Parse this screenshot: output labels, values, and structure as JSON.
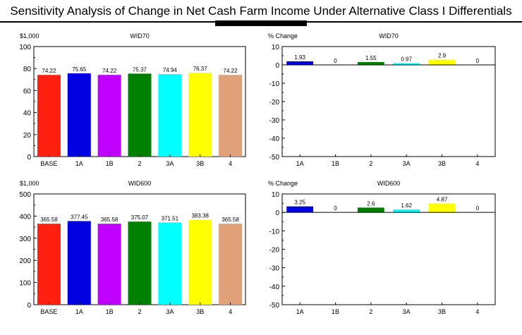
{
  "title": "Sensitivity Analysis of Change in Net Cash Farm Income Under Alternative Class I Differentials",
  "chart_data": [
    {
      "type": "bar",
      "title": "WID70",
      "ylabel": "$1,000",
      "ylim": [
        0,
        100
      ],
      "yticks": [
        0,
        20,
        40,
        60,
        80,
        100
      ],
      "categories": [
        "BASE",
        "1A",
        "1B",
        "2",
        "3A",
        "3B",
        "4"
      ],
      "values": [
        74.22,
        75.65,
        74.22,
        75.37,
        74.94,
        76.37,
        74.22
      ],
      "labels": [
        "74.22",
        "75.65",
        "74.22",
        "75.37",
        "74.94",
        "76.37",
        "74.22"
      ],
      "colors": [
        "#ff2010",
        "#0000e0",
        "#c000ff",
        "#008000",
        "#00ffff",
        "#ffff00",
        "#e0a078"
      ]
    },
    {
      "type": "bar",
      "title": "WID70",
      "ylabel": "% Change",
      "ylim": [
        -50,
        10
      ],
      "yticks": [
        -50,
        -40,
        -30,
        -20,
        -10,
        0,
        10
      ],
      "categories": [
        "1A",
        "1B",
        "2",
        "3A",
        "3B",
        "4"
      ],
      "values": [
        1.93,
        0,
        1.55,
        0.97,
        2.9,
        0
      ],
      "labels": [
        "1.93",
        "0",
        "1.55",
        "0.97",
        "2.9",
        "0"
      ],
      "colors": [
        "#0000e0",
        "#c000ff",
        "#008000",
        "#00ffff",
        "#ffff00",
        "#e0a078"
      ]
    },
    {
      "type": "bar",
      "title": "WID600",
      "ylabel": "$1,000",
      "ylim": [
        0,
        500
      ],
      "yticks": [
        0,
        100,
        200,
        300,
        400,
        500
      ],
      "categories": [
        "BASE",
        "1A",
        "1B",
        "2",
        "3A",
        "3B",
        "4"
      ],
      "values": [
        365.58,
        377.45,
        365.58,
        375.07,
        371.51,
        383.38,
        365.58
      ],
      "labels": [
        "365.58",
        "377.45",
        "365.58",
        "375.07",
        "371.51",
        "383.38",
        "365.58"
      ],
      "colors": [
        "#ff2010",
        "#0000e0",
        "#c000ff",
        "#008000",
        "#00ffff",
        "#ffff00",
        "#e0a078"
      ]
    },
    {
      "type": "bar",
      "title": "WID600",
      "ylabel": "% Change",
      "ylim": [
        -50,
        10
      ],
      "yticks": [
        -50,
        -40,
        -30,
        -20,
        -10,
        0,
        10
      ],
      "categories": [
        "1A",
        "1B",
        "2",
        "3A",
        "3B",
        "4"
      ],
      "values": [
        3.25,
        0,
        2.6,
        1.62,
        4.87,
        0
      ],
      "labels": [
        "3.25",
        "0",
        "2.6",
        "1.62",
        "4.87",
        "0"
      ],
      "colors": [
        "#0000e0",
        "#c000ff",
        "#008000",
        "#00ffff",
        "#ffff00",
        "#e0a078"
      ]
    }
  ]
}
